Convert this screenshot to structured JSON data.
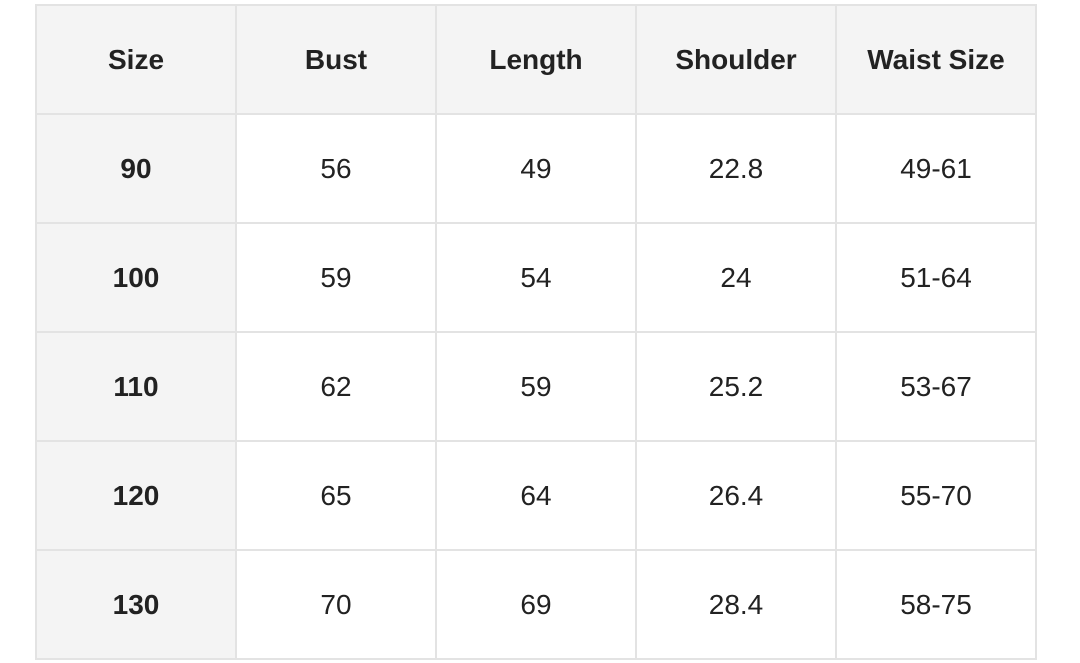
{
  "table": {
    "headers": [
      "Size",
      "Bust",
      "Length",
      "Shoulder",
      "Waist Size"
    ],
    "rows": [
      [
        "90",
        "56",
        "49",
        "22.8",
        "49-61"
      ],
      [
        "100",
        "59",
        "54",
        "24",
        "51-64"
      ],
      [
        "110",
        "62",
        "59",
        "25.2",
        "53-67"
      ],
      [
        "120",
        "65",
        "64",
        "26.4",
        "55-70"
      ],
      [
        "130",
        "70",
        "69",
        "28.4",
        "58-75"
      ]
    ]
  },
  "colors": {
    "header_bg": "#f4f4f4",
    "border": "#e3e3e3",
    "text": "#222222"
  }
}
